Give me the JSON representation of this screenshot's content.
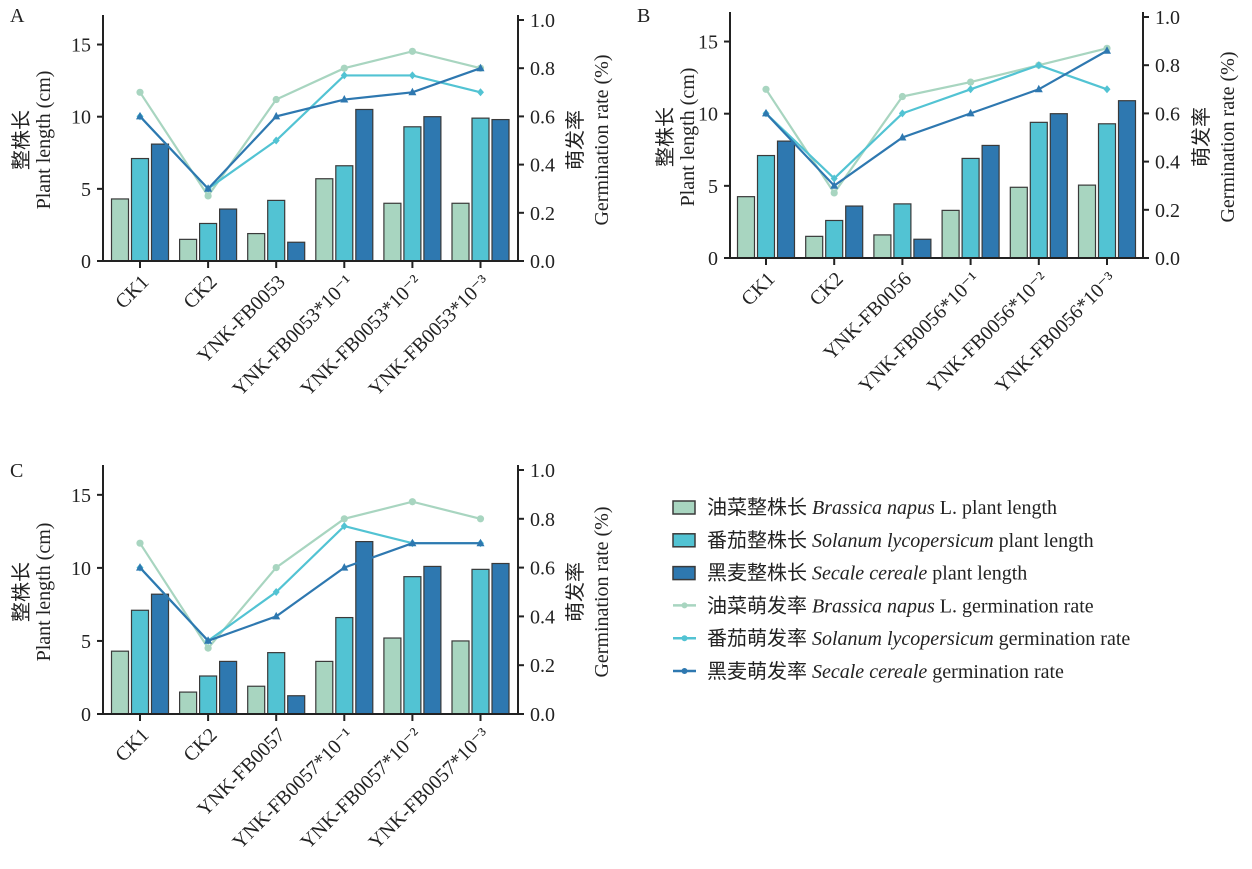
{
  "colors": {
    "brassica": "#a8d5c0",
    "solanum": "#52c3d3",
    "secale": "#2e78b0",
    "bar_edge": "#3a3a3a"
  },
  "axis_labels": {
    "left_cn": "整株长",
    "left_en": "Plant length (cm)",
    "right_cn": "萌发率",
    "right_en": "Germination rate (%)"
  },
  "legend": [
    {
      "cn": "油菜整株长",
      "italic": "Brassica napus",
      "rest": " L. plant length",
      "kind": "bar",
      "color_key": "brassica"
    },
    {
      "cn": "番茄整株长",
      "italic": "Solanum lycopersicum",
      "rest": " plant length",
      "kind": "bar",
      "color_key": "solanum"
    },
    {
      "cn": "黑麦整株长",
      "italic": "Secale cereale",
      "rest": " plant length",
      "kind": "bar",
      "color_key": "secale"
    },
    {
      "cn": "油菜萌发率",
      "italic": "Brassica napus",
      "rest": " L. germination rate",
      "kind": "line",
      "color_key": "brassica"
    },
    {
      "cn": "番茄萌发率",
      "italic": "Solanum lycopersicum",
      "rest": " germination rate",
      "kind": "line",
      "color_key": "solanum"
    },
    {
      "cn": "黑麦萌发率",
      "italic": "Secale cereale",
      "rest": " germination rate",
      "kind": "line",
      "color_key": "secale"
    }
  ],
  "chart_data": [
    {
      "panel": "A",
      "type": "bar+line",
      "categories": [
        "CK1",
        "CK2",
        "YNK-FB0053",
        "YNK-FB0053*10⁻¹",
        "YNK-FB0053*10⁻²",
        "YNK-FB0053*10⁻³"
      ],
      "left_axis": {
        "label": "整株长 Plant length (cm)",
        "ylim": [
          0,
          16.7
        ],
        "ticks": [
          0,
          5,
          10,
          15
        ],
        "tick_labels": [
          "0",
          "5",
          "10",
          "15"
        ]
      },
      "right_axis": {
        "label": "萌发率 Germination rate (%)",
        "ylim": [
          0,
          1.0
        ],
        "ticks": [
          0,
          0.2,
          0.4,
          0.6,
          0.8,
          1.0
        ],
        "tick_labels": [
          "0.0",
          "0.2",
          "0.4",
          "0.6",
          "0.8",
          "1.0"
        ]
      },
      "bars": [
        {
          "name": "油菜整株长 Brassica napus L. plant length",
          "color_key": "brassica",
          "values": [
            4.3,
            1.5,
            1.9,
            5.7,
            4.0,
            4.0
          ]
        },
        {
          "name": "番茄整株长 Solanum lycopersicum plant length",
          "color_key": "solanum",
          "values": [
            7.1,
            2.6,
            4.2,
            6.6,
            9.3,
            9.9
          ]
        },
        {
          "name": "黑麦整株长 Secale cereale plant length",
          "color_key": "secale",
          "values": [
            8.1,
            3.6,
            1.3,
            10.5,
            10.0,
            9.8
          ]
        }
      ],
      "lines": [
        {
          "name": "油菜萌发率 Brassica napus L. germination rate",
          "color_key": "brassica",
          "marker": "circle",
          "values": [
            0.7,
            0.27,
            0.67,
            0.8,
            0.87,
            0.8
          ]
        },
        {
          "name": "番茄萌发率 Solanum lycopersicum germination rate",
          "color_key": "solanum",
          "marker": "diamond",
          "values": [
            0.6,
            0.3,
            0.5,
            0.77,
            0.77,
            0.7
          ]
        },
        {
          "name": "黑麦萌发率 Secale cereale germination rate",
          "color_key": "secale",
          "marker": "triangle",
          "values": [
            0.6,
            0.3,
            0.6,
            0.67,
            0.7,
            0.8
          ]
        }
      ]
    },
    {
      "panel": "B",
      "type": "bar+line",
      "categories": [
        "CK1",
        "CK2",
        "YNK-FB0056",
        "YNK-FB0056*10⁻¹",
        "YNK-FB0056*10⁻²",
        "YNK-FB0056*10⁻³"
      ],
      "left_axis": {
        "label": "整株长 Plant length (cm)",
        "ylim": [
          0,
          16.7
        ],
        "ticks": [
          0,
          5,
          10,
          15
        ],
        "tick_labels": [
          "0",
          "5",
          "10",
          "15"
        ]
      },
      "right_axis": {
        "label": "萌发率 Germination rate (%)",
        "ylim": [
          0,
          1.0
        ],
        "ticks": [
          0,
          0.2,
          0.4,
          0.6,
          0.8,
          1.0
        ],
        "tick_labels": [
          "0.0",
          "0.2",
          "0.4",
          "0.6",
          "0.8",
          "1.0"
        ]
      },
      "bars": [
        {
          "name": "油菜整株长 Brassica napus L. plant length",
          "color_key": "brassica",
          "values": [
            4.25,
            1.5,
            1.6,
            3.3,
            4.9,
            5.05
          ]
        },
        {
          "name": "番茄整株长 Solanum lycopersicum plant length",
          "color_key": "solanum",
          "values": [
            7.1,
            2.6,
            3.75,
            6.9,
            9.4,
            9.3
          ]
        },
        {
          "name": "黑麦整株长 Secale cereale plant length",
          "color_key": "secale",
          "values": [
            8.1,
            3.6,
            1.3,
            7.8,
            10.0,
            10.9
          ]
        }
      ],
      "lines": [
        {
          "name": "油菜萌发率 Brassica napus L. germination rate",
          "color_key": "brassica",
          "marker": "circle",
          "values": [
            0.7,
            0.27,
            0.67,
            0.73,
            0.8,
            0.87
          ]
        },
        {
          "name": "番茄萌发率 Solanum lycopersicum germination rate",
          "color_key": "solanum",
          "marker": "diamond",
          "values": [
            0.6,
            0.33,
            0.6,
            0.7,
            0.8,
            0.7
          ]
        },
        {
          "name": "黑麦萌发率 Secale cereale germination rate",
          "color_key": "secale",
          "marker": "triangle",
          "values": [
            0.6,
            0.3,
            0.5,
            0.6,
            0.7,
            0.86
          ]
        }
      ]
    },
    {
      "panel": "C",
      "type": "bar+line",
      "categories": [
        "CK1",
        "CK2",
        "YNK-FB0057",
        "YNK-FB0057*10⁻¹",
        "YNK-FB0057*10⁻²",
        "YNK-FB0057*10⁻³"
      ],
      "left_axis": {
        "label": "整株长 Plant length (cm)",
        "ylim": [
          0,
          16.7
        ],
        "ticks": [
          0,
          5,
          10,
          15
        ],
        "tick_labels": [
          "0",
          "5",
          "10",
          "15"
        ]
      },
      "right_axis": {
        "label": "萌发率 Germination rate (%)",
        "ylim": [
          0,
          1.0
        ],
        "ticks": [
          0,
          0.2,
          0.4,
          0.6,
          0.8,
          1.0
        ],
        "tick_labels": [
          "0.0",
          "0.2",
          "0.4",
          "0.6",
          "0.8",
          "1.0"
        ]
      },
      "bars": [
        {
          "name": "油菜整株长 Brassica napus L. plant length",
          "color_key": "brassica",
          "values": [
            4.3,
            1.5,
            1.9,
            3.6,
            5.2,
            5.0
          ]
        },
        {
          "name": "番茄整株长 Solanum lycopersicum plant length",
          "color_key": "solanum",
          "values": [
            7.1,
            2.6,
            4.2,
            6.6,
            9.4,
            9.9
          ]
        },
        {
          "name": "黑麦整株长 Secale cereale plant length",
          "color_key": "secale",
          "values": [
            8.2,
            3.6,
            1.25,
            11.8,
            10.1,
            10.3
          ]
        }
      ],
      "lines": [
        {
          "name": "油菜萌发率 Brassica napus L. germination rate",
          "color_key": "brassica",
          "marker": "circle",
          "values": [
            0.7,
            0.27,
            0.6,
            0.8,
            0.87,
            0.8
          ]
        },
        {
          "name": "番茄萌发率 Solanum lycopersicum germination rate",
          "color_key": "solanum",
          "marker": "diamond",
          "values": [
            0.6,
            0.3,
            0.5,
            0.77,
            0.7,
            0.7
          ]
        },
        {
          "name": "黑麦萌发率 Secale cereale germination rate",
          "color_key": "secale",
          "marker": "triangle",
          "values": [
            0.6,
            0.3,
            0.4,
            0.6,
            0.7,
            0.7
          ]
        }
      ]
    }
  ]
}
